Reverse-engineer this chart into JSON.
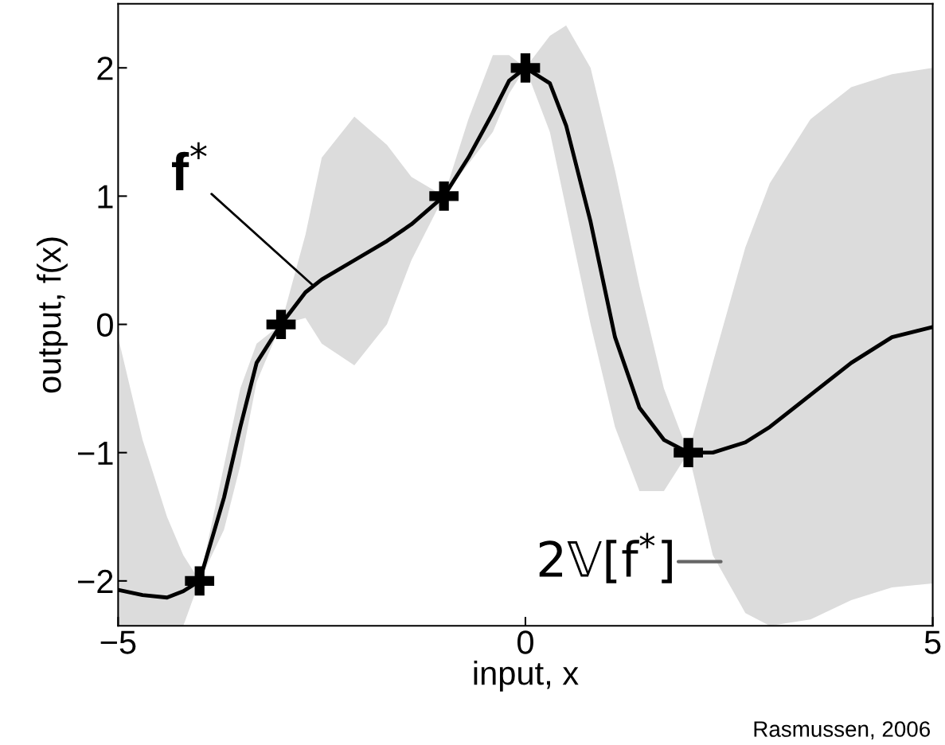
{
  "chart_data": {
    "type": "line",
    "xlabel": "input, x",
    "ylabel": "output, f(x)",
    "xlim": [
      -5,
      5
    ],
    "ylim": [
      -2.35,
      2.5
    ],
    "xticks": [
      {
        "value": -5,
        "label": "−5"
      },
      0,
      5
    ],
    "yticks": [
      {
        "value": -2,
        "label": "−2"
      },
      {
        "value": -1,
        "label": "−1"
      },
      0,
      1,
      2
    ],
    "grid": false,
    "legend": false,
    "series": [
      {
        "color": "#000000",
        "marker": "none",
        "line_style": "solid",
        "x": [
          -5,
          -4.7,
          -4.4,
          -4.2,
          -4,
          -3.7,
          -3.5,
          -3.3,
          -3,
          -2.7,
          -2.5,
          -2.1,
          -1.7,
          -1.4,
          -1,
          -0.7,
          -0.4,
          -0.2,
          0,
          0.3,
          0.5,
          0.8,
          1.1,
          1.4,
          1.7,
          2,
          2.3,
          2.7,
          3,
          3.5,
          4,
          4.5,
          5
        ],
        "values": [
          -2.07,
          -2.11,
          -2.13,
          -2.08,
          -2,
          -1.35,
          -0.8,
          -0.3,
          0,
          0.25,
          0.35,
          0.5,
          0.65,
          0.78,
          1,
          1.3,
          1.65,
          1.9,
          2,
          1.88,
          1.55,
          0.8,
          -0.1,
          -0.65,
          -0.9,
          -1,
          -1,
          -0.92,
          -0.8,
          -0.55,
          -0.3,
          -0.1,
          -0.02
        ],
        "lower": [
          -2.35,
          -2.35,
          -2.35,
          -2.35,
          -2,
          -1.6,
          -1.1,
          -0.45,
          0,
          0.05,
          -0.15,
          -0.32,
          0,
          0.5,
          1,
          1.25,
          1.5,
          1.8,
          2,
          1.5,
          0.9,
          0,
          -0.8,
          -1.3,
          -1.3,
          -1,
          -1.8,
          -2.25,
          -2.35,
          -2.3,
          -2.15,
          -2.05,
          -2.02
        ],
        "upper": [
          -0.1,
          -0.9,
          -1.5,
          -1.8,
          -2,
          -1.1,
          -0.5,
          -0.15,
          0,
          0.7,
          1.3,
          1.62,
          1.4,
          1.15,
          1,
          1.6,
          2.1,
          2.1,
          2,
          2.25,
          2.33,
          2,
          1.2,
          0.3,
          -0.5,
          -1,
          -0.3,
          0.6,
          1.1,
          1.6,
          1.85,
          1.95,
          2
        ]
      },
      {
        "type": "scatter",
        "color": "#000000",
        "marker": "cross",
        "x": [
          -4,
          -3,
          -1,
          0,
          2
        ],
        "values": [
          -2,
          0,
          1,
          2,
          -1
        ]
      }
    ],
    "annotations": [
      {
        "text": "f$^{*}$",
        "x": -2.6,
        "y": 0.3
      },
      {
        "text": "2𝕍[f$^{*}$]",
        "x": 2.4,
        "y": -1.85
      },
      "Rasmussen, 2006"
    ]
  }
}
